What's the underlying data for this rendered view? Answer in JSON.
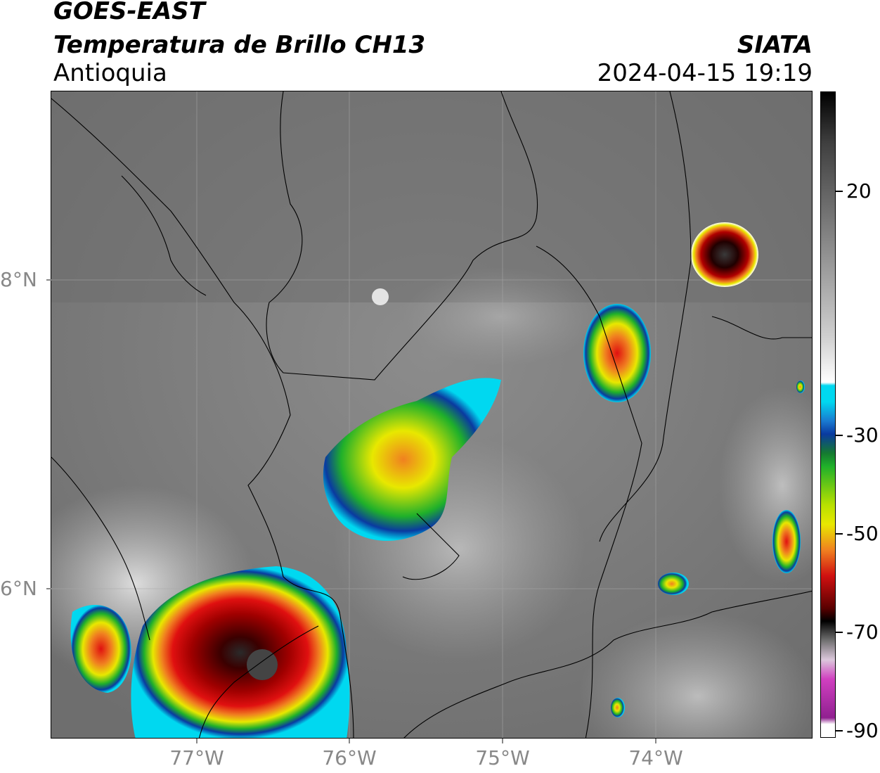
{
  "header": {
    "satellite": "GOES-EAST",
    "product": "Temperatura de Brillo CH13",
    "region": "Antioquia",
    "agency": "SIATA",
    "timestamp": "2024-04-15 19:19"
  },
  "map": {
    "lat_labels": [
      "8°N",
      "6°N"
    ],
    "lon_labels": [
      "77°W",
      "76°W",
      "75°W",
      "74°W"
    ]
  },
  "colorbar": {
    "tick_labels": [
      "20",
      "-30",
      "-50",
      "-70",
      "-90"
    ],
    "colors": {
      "cyan": "#00d8f0",
      "blue": "#0a3aa0",
      "green": "#1fb02a",
      "yellow": "#e8e800",
      "orange": "#f08020",
      "red": "#d01010",
      "darkred": "#5a0000",
      "black": "#000000",
      "magenta": "#d040c0"
    }
  }
}
